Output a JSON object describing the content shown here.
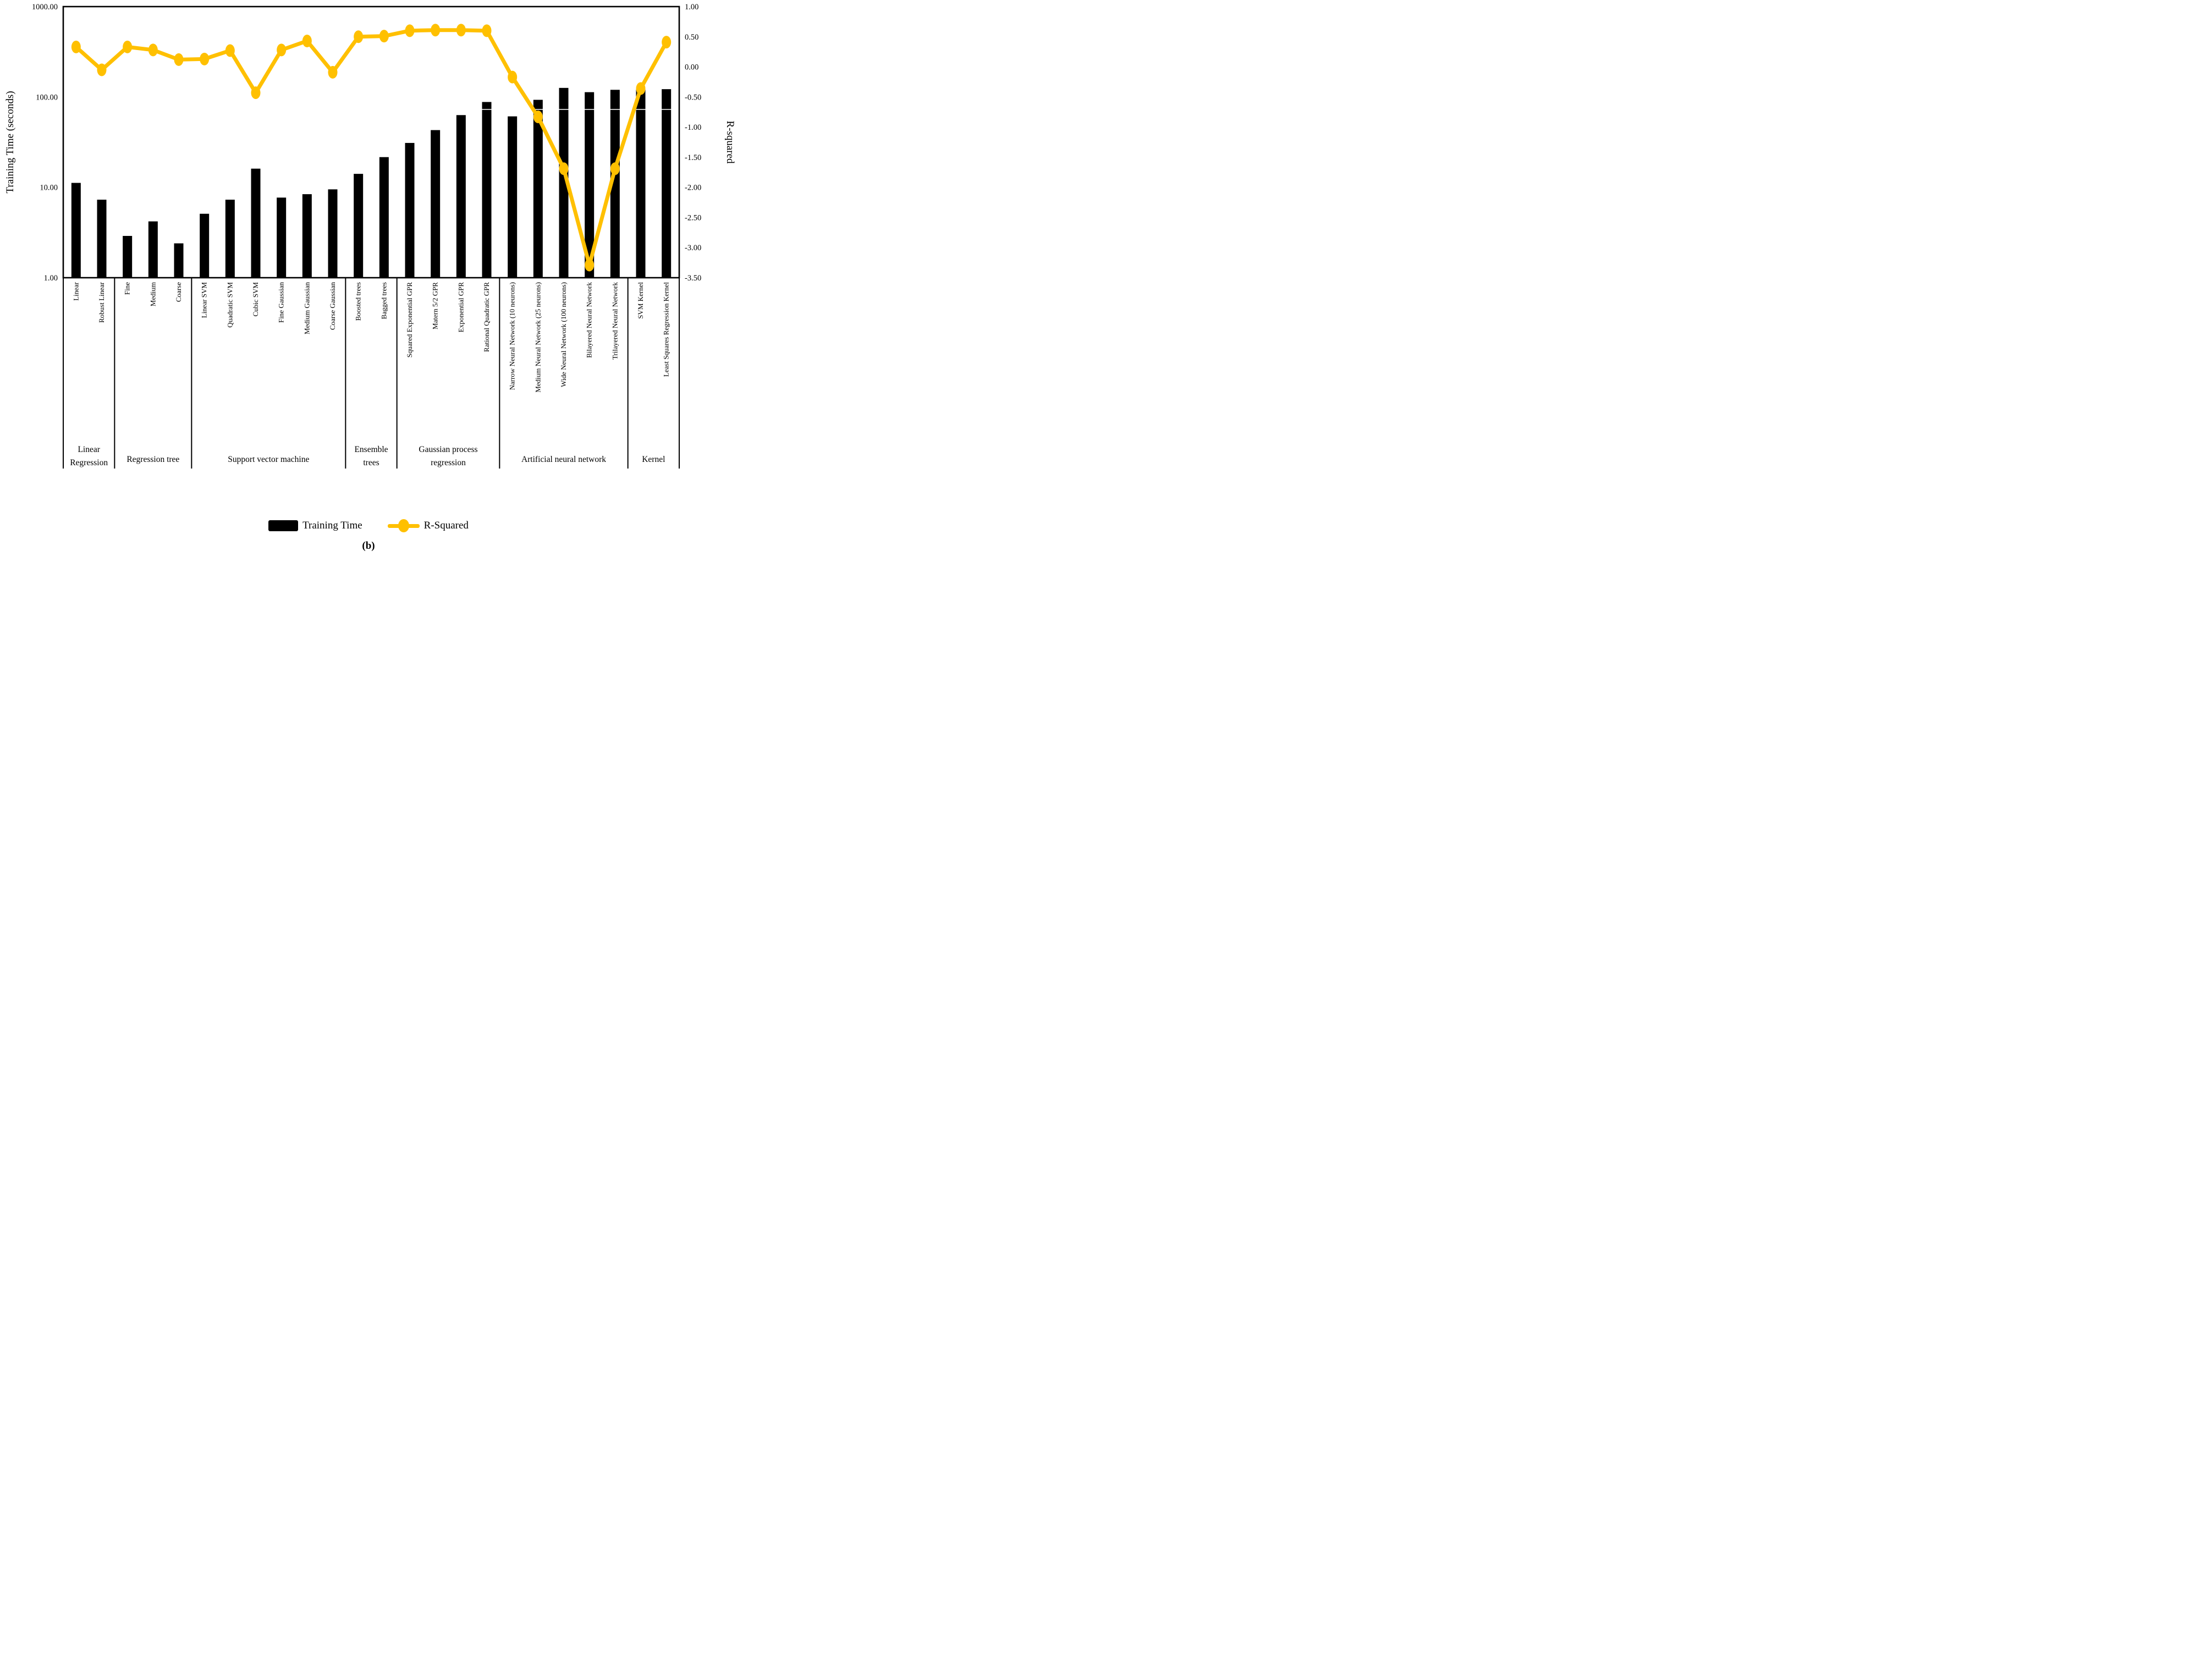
{
  "figure": {
    "caption": "(b)"
  },
  "legend": {
    "items": [
      {
        "label": "Training Time",
        "type": "bar",
        "color": "#000000"
      },
      {
        "label": "R-Squared",
        "type": "line",
        "color": "#FFC000"
      }
    ]
  },
  "chart_data": {
    "type": "bar+line combo",
    "title": "",
    "background": "#FFFFFF",
    "bar_color": "#000000",
    "line_color": "#FFC000",
    "grid": false,
    "legend_position": "bottom",
    "left_axis": {
      "label": "Training Time (seconds)",
      "scale": "log",
      "range": [
        1,
        1000
      ],
      "ticks": [
        "1000.00",
        "100.00",
        "10.00",
        "1.00"
      ]
    },
    "right_axis": {
      "label": "R-squared",
      "scale": "linear",
      "range": [
        -3.5,
        1.0
      ],
      "ticks": [
        "1.00",
        "0.50",
        "0.00",
        "-0.50",
        "-1.00",
        "-1.50",
        "-2.00",
        "-2.50",
        "-3.00",
        "-3.50"
      ]
    },
    "groups": [
      {
        "label": "Linear Regression",
        "lines": [
          "Linear",
          "Regression"
        ],
        "count": 2
      },
      {
        "label": "Regression tree",
        "lines": [
          "Regression tree"
        ],
        "count": 3
      },
      {
        "label": "Support vector machine",
        "lines": [
          "Support vector machine"
        ],
        "count": 6
      },
      {
        "label": "Ensemble trees",
        "lines": [
          "Ensemble",
          "trees"
        ],
        "count": 2
      },
      {
        "label": "Gaussian process regression",
        "lines": [
          "Gaussian process",
          "regression"
        ],
        "count": 4
      },
      {
        "label": "Artificial neural network",
        "lines": [
          "Artificial neural network"
        ],
        "count": 5
      },
      {
        "label": "Kernel",
        "lines": [
          "Kernel"
        ],
        "count": 2
      }
    ],
    "categories": [
      "Linear",
      "Robust Linear",
      "Fine",
      "Medium",
      "Coarse",
      "Linear SVM",
      "Quadratic SVM",
      "Cubic SVM",
      "Fine Gaussian",
      "Medium Gaussian",
      "Coarse Gaussian",
      "Boosted trees",
      "Bagged trees",
      "Squared Exponential GPR",
      "Matern 5/2 GPR",
      "Exponential GPR",
      "Rational Quadratic GPR",
      "Narrow Neural Network (10 neurons)",
      "Medium Neural Network (25 neurons)",
      "Wide Neural Network (100 neurons)",
      "Bilayered Neural Network",
      "Trilayered Neural Network",
      "SVM Kernel",
      "Least Squares Regression Kernel"
    ],
    "series": [
      {
        "name": "Training Time",
        "type": "bar",
        "axis": "left",
        "unit": "seconds",
        "values": [
          11.2,
          7.3,
          2.9,
          4.2,
          2.4,
          5.1,
          7.3,
          16.1,
          7.7,
          8.4,
          9.5,
          14.1,
          21.6,
          31,
          43,
          63,
          88,
          61,
          93,
          126,
          113,
          120,
          121,
          122
        ]
      },
      {
        "name": "R-Squared",
        "type": "line",
        "axis": "right",
        "values": [
          0.33,
          -0.05,
          0.33,
          0.28,
          0.12,
          0.13,
          0.27,
          -0.43,
          0.28,
          0.43,
          -0.09,
          0.5,
          0.51,
          0.6,
          0.61,
          0.61,
          0.6,
          -0.17,
          -0.83,
          -1.69,
          -3.29,
          -1.69,
          -0.36,
          0.41
        ]
      }
    ]
  }
}
